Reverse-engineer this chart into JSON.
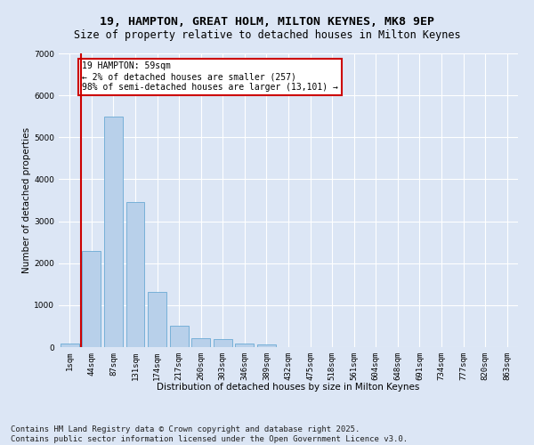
{
  "title_line1": "19, HAMPTON, GREAT HOLM, MILTON KEYNES, MK8 9EP",
  "title_line2": "Size of property relative to detached houses in Milton Keynes",
  "xlabel": "Distribution of detached houses by size in Milton Keynes",
  "ylabel": "Number of detached properties",
  "bar_color": "#b8d0ea",
  "bar_edge_color": "#6aaad4",
  "background_color": "#dce6f5",
  "grid_color": "#ffffff",
  "categories": [
    "1sqm",
    "44sqm",
    "87sqm",
    "131sqm",
    "174sqm",
    "217sqm",
    "260sqm",
    "303sqm",
    "346sqm",
    "389sqm",
    "432sqm",
    "475sqm",
    "518sqm",
    "561sqm",
    "604sqm",
    "648sqm",
    "691sqm",
    "734sqm",
    "777sqm",
    "820sqm",
    "863sqm"
  ],
  "values": [
    75,
    2300,
    5500,
    3450,
    1320,
    510,
    215,
    185,
    90,
    55,
    0,
    0,
    0,
    0,
    0,
    0,
    0,
    0,
    0,
    0,
    0
  ],
  "ylim": [
    0,
    7000
  ],
  "yticks": [
    0,
    1000,
    2000,
    3000,
    4000,
    5000,
    6000,
    7000
  ],
  "vline_x": 0.5,
  "vline_color": "#cc0000",
  "annotation_text": "19 HAMPTON: 59sqm\n← 2% of detached houses are smaller (257)\n98% of semi-detached houses are larger (13,101) →",
  "annotation_box_color": "#ffffff",
  "annotation_box_edge_color": "#cc0000",
  "footer_line1": "Contains HM Land Registry data © Crown copyright and database right 2025.",
  "footer_line2": "Contains public sector information licensed under the Open Government Licence v3.0.",
  "footer_fontsize": 6.5,
  "title_fontsize": 9.5,
  "subtitle_fontsize": 8.5,
  "label_fontsize": 7.5,
  "tick_fontsize": 6.5,
  "annot_fontsize": 7.0
}
